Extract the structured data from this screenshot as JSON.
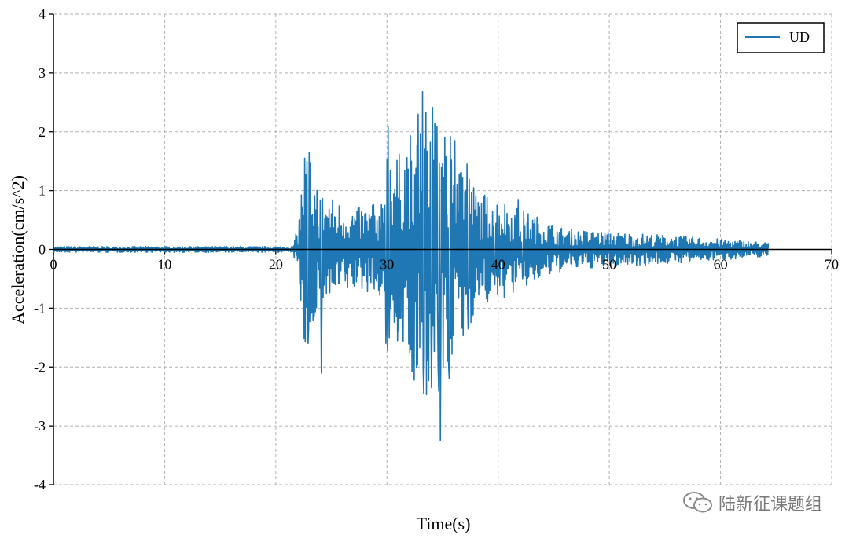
{
  "chart_data": {
    "type": "line",
    "xlabel": "Time(s)",
    "ylabel": "Acceleration(cm/s^2)",
    "xlim": [
      0,
      70
    ],
    "ylim": [
      -4,
      4
    ],
    "xticks": [
      0,
      10,
      20,
      30,
      40,
      50,
      60,
      70
    ],
    "yticks": [
      4,
      3,
      2,
      1,
      0,
      -1,
      -2,
      -3,
      -4
    ],
    "grid": true,
    "legend_position": "top-right",
    "colors": {
      "series": "#1f77b4",
      "grid": "#b0b0b0",
      "axis": "#000000"
    },
    "series": [
      {
        "name": "UD",
        "envelope": [
          [
            0,
            0.05
          ],
          [
            21.5,
            0.05
          ],
          [
            22.0,
            0.4
          ],
          [
            22.6,
            1.8
          ],
          [
            24.0,
            1.0
          ],
          [
            27.0,
            0.7
          ],
          [
            29.5,
            0.8
          ],
          [
            30.1,
            2.1
          ],
          [
            31.0,
            1.6
          ],
          [
            33.0,
            2.5
          ],
          [
            35.0,
            2.4
          ],
          [
            37.0,
            1.6
          ],
          [
            38.0,
            1.0
          ],
          [
            40.0,
            0.9
          ],
          [
            42.0,
            0.7
          ],
          [
            46.0,
            0.35
          ],
          [
            50.0,
            0.3
          ],
          [
            55.0,
            0.25
          ],
          [
            60.0,
            0.18
          ],
          [
            64.3,
            0.12
          ]
        ],
        "peaks": [
          [
            22.6,
            1.55
          ],
          [
            23.0,
            1.65
          ],
          [
            22.9,
            -1.6
          ],
          [
            24.1,
            -2.1
          ],
          [
            28.7,
            0.75
          ],
          [
            29.9,
            -1.6
          ],
          [
            30.1,
            2.1
          ],
          [
            30.2,
            -1.5
          ],
          [
            32.2,
            1.5
          ],
          [
            32.8,
            2.3
          ],
          [
            33.2,
            2.68
          ],
          [
            33.3,
            -2.45
          ],
          [
            34.0,
            -2.35
          ],
          [
            34.3,
            2.15
          ],
          [
            34.6,
            -2.0
          ],
          [
            34.8,
            -3.25
          ],
          [
            35.2,
            1.9
          ],
          [
            35.6,
            -2.2
          ],
          [
            36.1,
            1.85
          ],
          [
            36.6,
            1.3
          ],
          [
            37.2,
            1.45
          ],
          [
            37.3,
            -1.35
          ],
          [
            39.5,
            0.65
          ],
          [
            39.7,
            -0.6
          ],
          [
            41.8,
            0.85
          ],
          [
            42.2,
            -0.5
          ]
        ]
      }
    ]
  },
  "watermark": {
    "text": "陆新征课题组",
    "icon": "wechat-icon"
  }
}
